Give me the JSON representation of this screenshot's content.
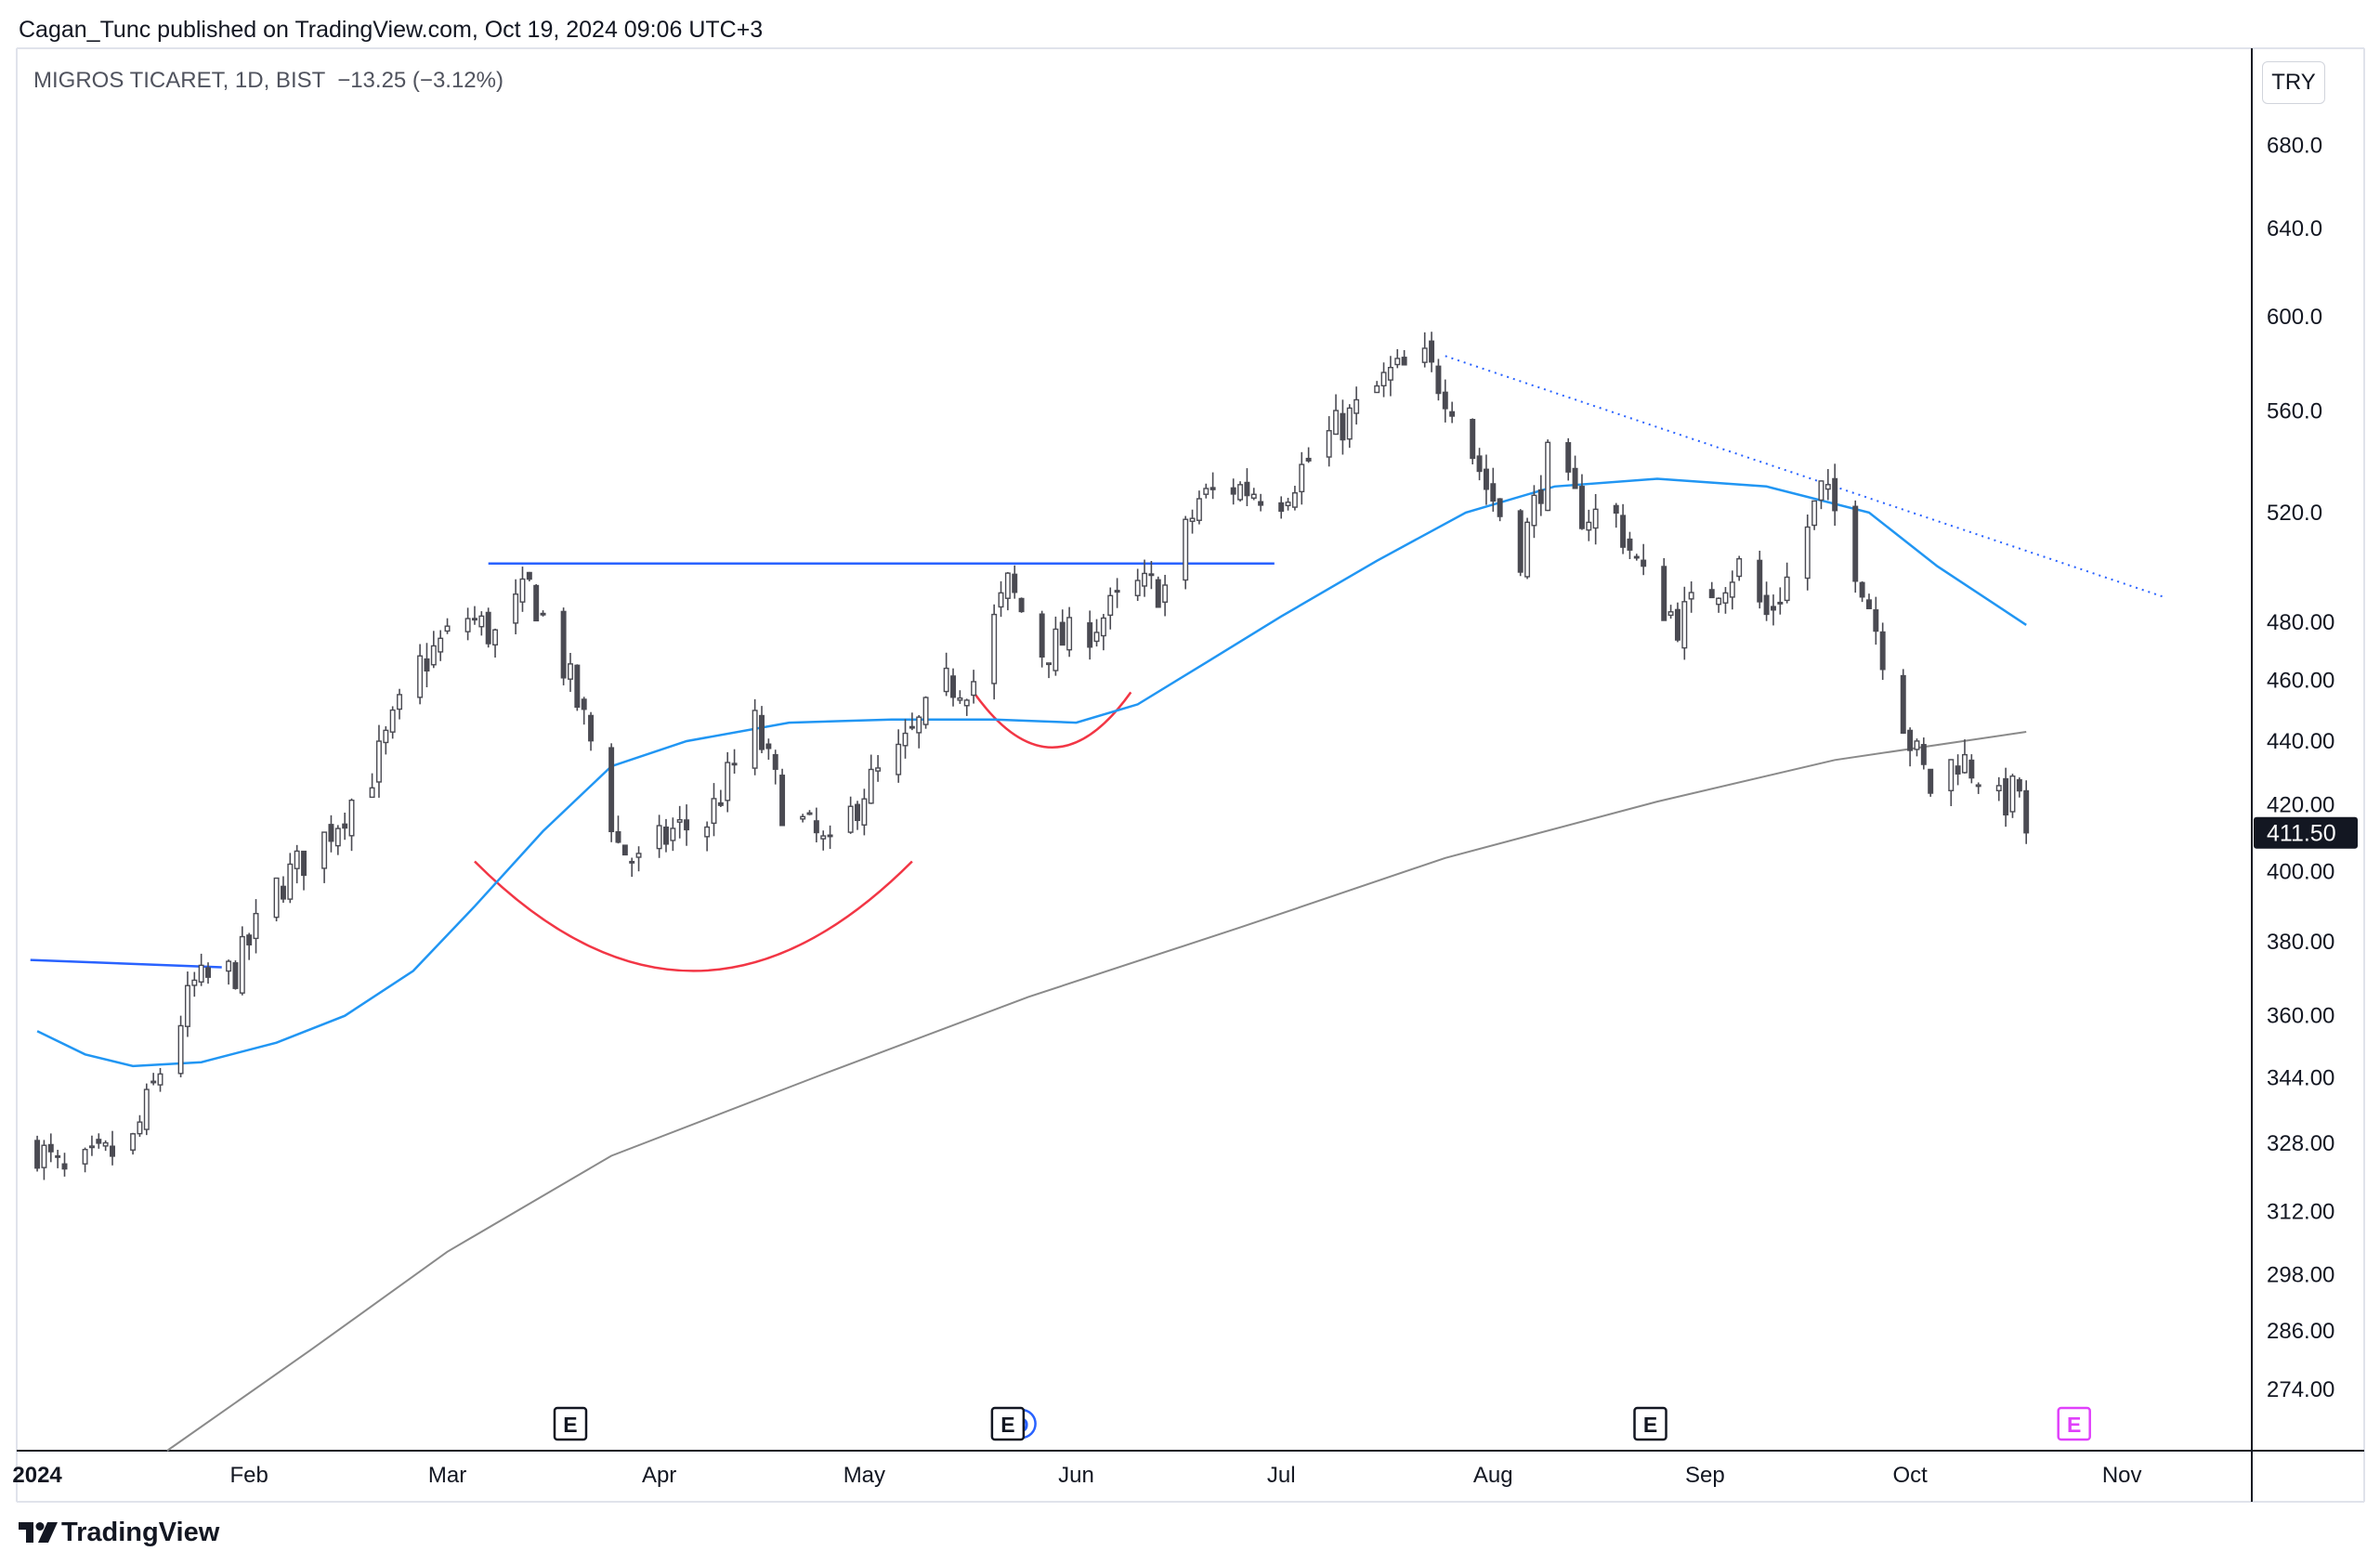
{
  "header": {
    "published_by": "Cagan_Tunc published on TradingView.com, Oct 19, 2024 09:06 UTC+3"
  },
  "legend": {
    "symbol": "MIGROS TICARET, 1D, BIST",
    "change": "−13.25 (−3.12%)"
  },
  "currency": "TRY",
  "brand": {
    "name": "TradingView",
    "icon": "tradingview-logo"
  },
  "colors": {
    "candle": "#4a4a52",
    "ma_fast": "#2196f3",
    "ma_slow": "#8a8a8a",
    "trendline": "#2962ff",
    "arc": "#f23645",
    "dotted_trend": "#2962ff",
    "earnings_future": "#e040fb"
  },
  "chart_data": {
    "type": "candlestick",
    "scale": "log",
    "ylim": [
      262,
      730
    ],
    "y_ticks": [
      {
        "value": 680,
        "label": "680.0"
      },
      {
        "value": 640,
        "label": "640.0"
      },
      {
        "value": 600,
        "label": "600.0"
      },
      {
        "value": 560,
        "label": "560.0"
      },
      {
        "value": 520,
        "label": "520.0"
      },
      {
        "value": 480,
        "label": "480.00"
      },
      {
        "value": 460,
        "label": "460.00"
      },
      {
        "value": 440,
        "label": "440.00"
      },
      {
        "value": 420,
        "label": "420.00"
      },
      {
        "value": 400,
        "label": "400.00"
      },
      {
        "value": 380,
        "label": "380.00"
      },
      {
        "value": 360,
        "label": "360.00"
      },
      {
        "value": 344,
        "label": "344.00"
      },
      {
        "value": 328,
        "label": "328.00"
      },
      {
        "value": 312,
        "label": "312.00"
      },
      {
        "value": 298,
        "label": "298.00"
      },
      {
        "value": 286,
        "label": "286.00"
      },
      {
        "value": 274,
        "label": "274.00"
      }
    ],
    "x_range": [
      "2023-12-29",
      "2024-11-20"
    ],
    "x_ticks": [
      {
        "date": "2024-01-01",
        "label": "2024"
      },
      {
        "date": "2024-02-01",
        "label": "Feb"
      },
      {
        "date": "2024-03-01",
        "label": "Mar"
      },
      {
        "date": "2024-04-01",
        "label": "Apr"
      },
      {
        "date": "2024-05-01",
        "label": "May"
      },
      {
        "date": "2024-06-01",
        "label": "Jun"
      },
      {
        "date": "2024-07-01",
        "label": "Jul"
      },
      {
        "date": "2024-08-01",
        "label": "Aug"
      },
      {
        "date": "2024-09-01",
        "label": "Sep"
      },
      {
        "date": "2024-10-01",
        "label": "Oct"
      },
      {
        "date": "2024-11-01",
        "label": "Nov"
      }
    ],
    "last_price": {
      "value": 411.5,
      "label": "411.50"
    },
    "close_path": [
      {
        "date": "2024-01-01",
        "close": 327
      },
      {
        "date": "2024-01-05",
        "close": 320
      },
      {
        "date": "2024-01-10",
        "close": 324
      },
      {
        "date": "2024-01-15",
        "close": 328
      },
      {
        "date": "2024-01-19",
        "close": 346
      },
      {
        "date": "2024-01-24",
        "close": 368
      },
      {
        "date": "2024-01-30",
        "close": 372
      },
      {
        "date": "2024-02-05",
        "close": 395
      },
      {
        "date": "2024-02-12",
        "close": 410
      },
      {
        "date": "2024-02-19",
        "close": 430
      },
      {
        "date": "2024-02-26",
        "close": 465
      },
      {
        "date": "2024-03-04",
        "close": 482
      },
      {
        "date": "2024-03-08",
        "close": 475
      },
      {
        "date": "2024-03-13",
        "close": 492
      },
      {
        "date": "2024-03-18",
        "close": 465
      },
      {
        "date": "2024-03-22",
        "close": 440
      },
      {
        "date": "2024-03-26",
        "close": 408
      },
      {
        "date": "2024-03-29",
        "close": 402
      },
      {
        "date": "2024-04-03",
        "close": 412
      },
      {
        "date": "2024-04-08",
        "close": 415
      },
      {
        "date": "2024-04-15",
        "close": 445
      },
      {
        "date": "2024-04-19",
        "close": 420
      },
      {
        "date": "2024-04-24",
        "close": 410
      },
      {
        "date": "2024-04-26",
        "close": 405
      },
      {
        "date": "2024-05-01",
        "close": 425
      },
      {
        "date": "2024-05-06",
        "close": 435
      },
      {
        "date": "2024-05-13",
        "close": 458
      },
      {
        "date": "2024-05-17",
        "close": 460
      },
      {
        "date": "2024-05-22",
        "close": 493
      },
      {
        "date": "2024-05-27",
        "close": 470
      },
      {
        "date": "2024-06-03",
        "close": 478
      },
      {
        "date": "2024-06-10",
        "close": 492
      },
      {
        "date": "2024-06-14",
        "close": 492
      },
      {
        "date": "2024-06-19",
        "close": 525
      },
      {
        "date": "2024-06-24",
        "close": 530
      },
      {
        "date": "2024-07-01",
        "close": 527
      },
      {
        "date": "2024-07-08",
        "close": 550
      },
      {
        "date": "2024-07-12",
        "close": 560
      },
      {
        "date": "2024-07-17",
        "close": 575
      },
      {
        "date": "2024-07-22",
        "close": 580
      },
      {
        "date": "2024-07-26",
        "close": 565
      },
      {
        "date": "2024-07-31",
        "close": 530
      },
      {
        "date": "2024-08-05",
        "close": 505
      },
      {
        "date": "2024-08-09",
        "close": 540
      },
      {
        "date": "2024-08-14",
        "close": 520
      },
      {
        "date": "2024-08-19",
        "close": 518
      },
      {
        "date": "2024-08-23",
        "close": 495
      },
      {
        "date": "2024-08-28",
        "close": 480
      },
      {
        "date": "2024-09-02",
        "close": 492
      },
      {
        "date": "2024-09-06",
        "close": 500
      },
      {
        "date": "2024-09-10",
        "close": 482
      },
      {
        "date": "2024-09-13",
        "close": 495
      },
      {
        "date": "2024-09-18",
        "close": 528
      },
      {
        "date": "2024-09-20",
        "close": 520
      },
      {
        "date": "2024-09-24",
        "close": 495
      },
      {
        "date": "2024-09-27",
        "close": 470
      },
      {
        "date": "2024-10-01",
        "close": 440
      },
      {
        "date": "2024-10-04",
        "close": 425
      },
      {
        "date": "2024-10-08",
        "close": 435
      },
      {
        "date": "2024-10-11",
        "close": 430
      },
      {
        "date": "2024-10-14",
        "close": 420
      },
      {
        "date": "2024-10-17",
        "close": 425
      },
      {
        "date": "2024-10-18",
        "close": 411.5
      }
    ],
    "ma_fast": [
      {
        "date": "2024-01-01",
        "value": 356
      },
      {
        "date": "2024-01-08",
        "value": 350
      },
      {
        "date": "2024-01-15",
        "value": 347
      },
      {
        "date": "2024-01-25",
        "value": 348
      },
      {
        "date": "2024-02-05",
        "value": 353
      },
      {
        "date": "2024-02-15",
        "value": 360
      },
      {
        "date": "2024-02-25",
        "value": 372
      },
      {
        "date": "2024-03-05",
        "value": 390
      },
      {
        "date": "2024-03-15",
        "value": 412
      },
      {
        "date": "2024-03-25",
        "value": 432
      },
      {
        "date": "2024-04-05",
        "value": 440
      },
      {
        "date": "2024-04-20",
        "value": 446
      },
      {
        "date": "2024-05-05",
        "value": 447
      },
      {
        "date": "2024-05-20",
        "value": 447
      },
      {
        "date": "2024-06-01",
        "value": 446
      },
      {
        "date": "2024-06-10",
        "value": 452
      },
      {
        "date": "2024-06-20",
        "value": 466
      },
      {
        "date": "2024-07-01",
        "value": 482
      },
      {
        "date": "2024-07-15",
        "value": 502
      },
      {
        "date": "2024-07-28",
        "value": 520
      },
      {
        "date": "2024-08-10",
        "value": 530
      },
      {
        "date": "2024-08-25",
        "value": 533
      },
      {
        "date": "2024-09-10",
        "value": 530
      },
      {
        "date": "2024-09-25",
        "value": 520
      },
      {
        "date": "2024-10-05",
        "value": 500
      },
      {
        "date": "2024-10-18",
        "value": 479
      }
    ],
    "ma_slow": [
      {
        "date": "2024-01-20",
        "value": 262
      },
      {
        "date": "2024-02-10",
        "value": 282
      },
      {
        "date": "2024-03-01",
        "value": 303
      },
      {
        "date": "2024-03-25",
        "value": 325
      },
      {
        "date": "2024-04-25",
        "value": 345
      },
      {
        "date": "2024-05-25",
        "value": 365
      },
      {
        "date": "2024-06-25",
        "value": 384
      },
      {
        "date": "2024-07-25",
        "value": 404
      },
      {
        "date": "2024-08-25",
        "value": 421
      },
      {
        "date": "2024-09-20",
        "value": 434
      },
      {
        "date": "2024-10-18",
        "value": 443
      }
    ],
    "drawings": {
      "horizontal_lines": [
        {
          "start": "2024-03-07",
          "end": "2024-06-30",
          "value": 501
        },
        {
          "start": "2023-12-31",
          "end": "2024-01-28",
          "value": 375,
          "end_value": 373
        }
      ],
      "dotted_trendline": {
        "start": "2024-07-25",
        "start_value": 583,
        "end": "2024-11-07",
        "end_value": 489
      },
      "arcs": [
        {
          "start": "2024-03-05",
          "end": "2024-05-08",
          "rim": 403,
          "bottom": 372
        },
        {
          "start": "2024-05-17",
          "end": "2024-06-09",
          "rim": 456,
          "bottom": 438
        }
      ]
    },
    "earnings_markers": [
      {
        "date": "2024-03-19",
        "label": "E",
        "future": false
      },
      {
        "date": "2024-05-22",
        "label": "E",
        "future": false
      },
      {
        "date": "2024-08-24",
        "label": "E",
        "future": false
      },
      {
        "date": "2024-10-25",
        "label": "E",
        "future": true
      }
    ],
    "dividend_marker": {
      "date": "2024-05-24",
      "label": "D"
    }
  }
}
